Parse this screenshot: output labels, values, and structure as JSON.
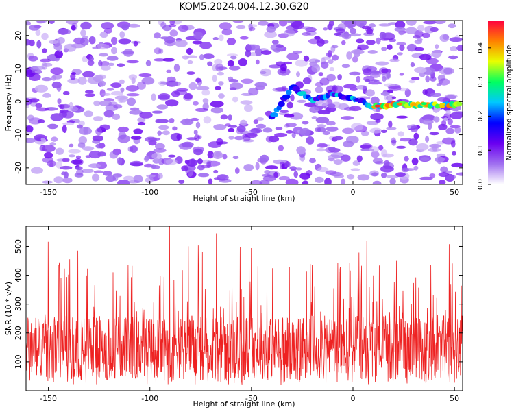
{
  "title": "KOM5.2024.004.12.30.G20",
  "chart_data": [
    {
      "type": "heatmap",
      "xlabel": "Height of straight line (km)",
      "ylabel": "Frequency (Hz)",
      "xlim": [
        -161,
        54
      ],
      "ylim": [
        -25,
        24.5
      ],
      "xticks": [
        "-150",
        "-100",
        "-50",
        "0",
        "50"
      ],
      "xtick_values": [
        -150,
        -100,
        -50,
        0,
        50
      ],
      "yticks": [
        "20",
        "10",
        "0",
        "-10",
        "-20"
      ],
      "ytick_values": [
        20,
        10,
        0,
        -10,
        -20
      ],
      "colorbar": {
        "label": "Normalized spectral amplitude",
        "range": [
          0,
          0.48
        ],
        "ticks": [
          "0.0",
          "0.1",
          "0.2",
          "0.3",
          "0.4"
        ],
        "tick_values": [
          0,
          0.1,
          0.2,
          0.3,
          0.4
        ],
        "colormap": [
          "#ffffff",
          "#a070f0",
          "#6a00f0",
          "#0000ff",
          "#00c8ff",
          "#00ff60",
          "#e8ff00",
          "#ff8000",
          "#ff0040"
        ]
      },
      "ridge": {
        "description_points_x": [
          -40,
          -30,
          -20,
          -10,
          0,
          10,
          20,
          30,
          40,
          50
        ],
        "description_points_freq": [
          -5,
          4.5,
          0.5,
          2.5,
          1,
          -1.5,
          -1,
          -1,
          -1,
          -1
        ],
        "peak_amplitude": 0.46
      }
    },
    {
      "type": "line",
      "xlabel": "Height of straight line (km)",
      "ylabel": "SNR (10 * v/v)",
      "xlim": [
        -161,
        54
      ],
      "ylim": [
        0,
        570
      ],
      "xticks": [
        "-150",
        "-100",
        "-50",
        "0",
        "50"
      ],
      "xtick_values": [
        -150,
        -100,
        -50,
        0,
        50
      ],
      "yticks": [
        "100",
        "200",
        "300",
        "400",
        "500"
      ],
      "ytick_values": [
        100,
        200,
        300,
        400,
        500
      ],
      "series": [
        {
          "color": "#ee2222",
          "typical_range": [
            20,
            340
          ],
          "max": 570,
          "mean": 150
        }
      ]
    }
  ]
}
